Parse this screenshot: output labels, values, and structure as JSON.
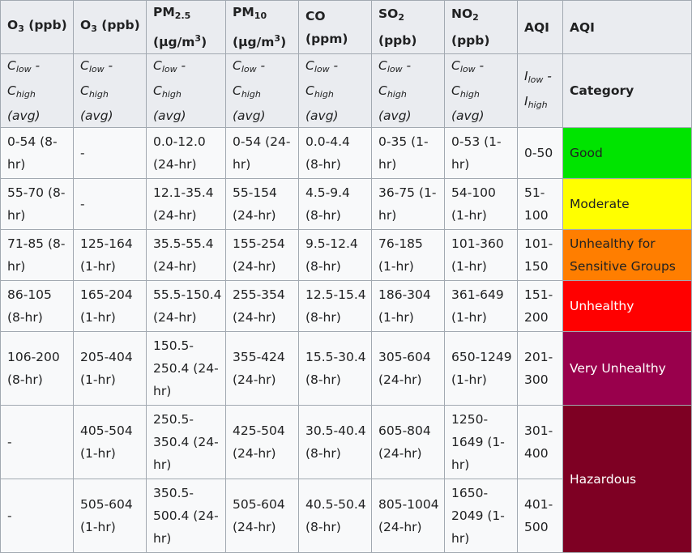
{
  "headers": {
    "o3_8hr": {
      "main": "O",
      "sub": "3",
      "rest": " (ppb)"
    },
    "o3_1hr": {
      "main": "O",
      "sub": "3",
      "rest": " (ppb)"
    },
    "pm25": {
      "main": "PM",
      "sub": "2.5",
      "unit_a": "(μg/m",
      "unit_sup": "3",
      "unit_b": ")"
    },
    "pm10": {
      "main": "PM",
      "sub": "10",
      "unit_a": "(μg/m",
      "unit_sup": "3",
      "unit_b": ")"
    },
    "co": {
      "main": "CO",
      "unit": "(ppm)"
    },
    "so2": {
      "main": "SO",
      "sub": "2",
      "unit": "(ppb)"
    },
    "no2": {
      "main": "NO",
      "sub": "2",
      "unit": "(ppb)"
    },
    "aqi": "AQI",
    "aqi_cat": "AQI",
    "conc": {
      "c": "C",
      "low": "low",
      "dash": " -",
      "high": "high",
      "avg": "(avg)"
    },
    "index": {
      "i": "I",
      "low": "low",
      "dash": " -",
      "high": "high"
    },
    "category": "Category"
  },
  "rows": [
    {
      "o3_8hr": "0-54 (8-hr)",
      "o3_1hr": "-",
      "pm25": "0.0-12.0 (24-hr)",
      "pm10": "0-54 (24-hr)",
      "co": "0.0-4.4 (8-hr)",
      "so2": "0-35 (1-hr)",
      "no2": "0-53 (1-hr)",
      "aqi": "0-50",
      "category": "Good",
      "color": "#00e400",
      "text_color": "#202122"
    },
    {
      "o3_8hr": "55-70 (8-hr)",
      "o3_1hr": "-",
      "pm25": "12.1-35.4 (24-hr)",
      "pm10": "55-154 (24-hr)",
      "co": "4.5-9.4 (8-hr)",
      "so2": "36-75 (1-hr)",
      "no2": "54-100 (1-hr)",
      "aqi": "51-100",
      "category": "Moderate",
      "color": "#ffff00",
      "text_color": "#202122"
    },
    {
      "o3_8hr": "71-85 (8-hr)",
      "o3_1hr": "125-164 (1-hr)",
      "pm25": "35.5-55.4 (24-hr)",
      "pm10": "155-254 (24-hr)",
      "co": "9.5-12.4 (8-hr)",
      "so2": "76-185 (1-hr)",
      "no2": "101-360 (1-hr)",
      "aqi": "101-150",
      "category": "Unhealthy for Sensitive Groups",
      "color": "#ff7e00",
      "text_color": "#202122"
    },
    {
      "o3_8hr": "86-105 (8-hr)",
      "o3_1hr": "165-204 (1-hr)",
      "pm25": "55.5-150.4 (24-hr)",
      "pm10": "255-354 (24-hr)",
      "co": "12.5-15.4 (8-hr)",
      "so2": "186-304 (1-hr)",
      "no2": "361-649 (1-hr)",
      "aqi": "151-200",
      "category": "Unhealthy",
      "color": "#ff0000",
      "text_color": "#ffffff"
    },
    {
      "o3_8hr": "106-200 (8-hr)",
      "o3_1hr": "205-404 (1-hr)",
      "pm25": "150.5-250.4 (24-hr)",
      "pm10": "355-424 (24-hr)",
      "co": "15.5-30.4 (8-hr)",
      "so2": "305-604 (24-hr)",
      "no2": "650-1249 (1-hr)",
      "aqi": "201-300",
      "category": "Very Unhealthy",
      "color": "#99004c",
      "text_color": "#ffffff"
    },
    {
      "o3_8hr": "-",
      "o3_1hr": "405-504 (1-hr)",
      "pm25": "250.5-350.4 (24-hr)",
      "pm10": "425-504 (24-hr)",
      "co": "30.5-40.4 (8-hr)",
      "so2": "605-804 (24-hr)",
      "no2": "1250-1649 (1-hr)",
      "aqi": "301-400",
      "category": "Hazardous",
      "color": "#7e0023",
      "text_color": "#ffffff"
    },
    {
      "o3_8hr": "-",
      "o3_1hr": "505-604 (1-hr)",
      "pm25": "350.5-500.4 (24-hr)",
      "pm10": "505-604 (24-hr)",
      "co": "40.5-50.4 (8-hr)",
      "so2": "805-1004 (24-hr)",
      "no2": "1650-2049 (1-hr)",
      "aqi": "401-500"
    }
  ]
}
